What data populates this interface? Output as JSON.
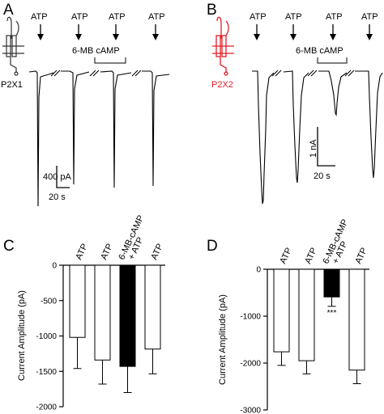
{
  "panels": {
    "A": {
      "letter": "A",
      "receptor": "P2X1",
      "receptor_color": "#333333",
      "agonist": "ATP",
      "modulator": "6-MB cAMP",
      "scale_current": "400 pA",
      "scale_time": "20 s",
      "trace_color": "#000000"
    },
    "B": {
      "letter": "B",
      "receptor": "P2X2",
      "receptor_color": "#e41e26",
      "agonist": "ATP",
      "modulator": "6-MB cAMP",
      "scale_current": "1 nA",
      "scale_time": "20 s",
      "trace_color": "#000000"
    },
    "C": {
      "letter": "C"
    },
    "D": {
      "letter": "D"
    }
  },
  "chart_data": [
    {
      "type": "bar",
      "panel": "C",
      "categories": [
        "ATP",
        "ATP",
        "6-MB-cAMP + ATP",
        "ATP"
      ],
      "values": [
        -1020,
        -1340,
        -1430,
        -1185
      ],
      "errors": [
        440,
        340,
        370,
        350
      ],
      "bar_colors": [
        "#ffffff",
        "#ffffff",
        "#000000",
        "#ffffff"
      ],
      "ylabel": "Current Amplitude (pA)",
      "ylim": [
        -2000,
        0
      ],
      "yticks": [
        0,
        -500,
        -1000,
        -1500,
        -2000
      ],
      "ytick_labels": [
        "0",
        "-500",
        "-1000",
        "-1500",
        "-2000"
      ],
      "annotations": []
    },
    {
      "type": "bar",
      "panel": "D",
      "categories": [
        "ATP",
        "ATP",
        "6-MB-cAMP + ATP",
        "ATP"
      ],
      "values": [
        -1760,
        -1950,
        -590,
        -2150
      ],
      "errors": [
        290,
        280,
        200,
        290
      ],
      "bar_colors": [
        "#ffffff",
        "#ffffff",
        "#000000",
        "#ffffff"
      ],
      "ylabel": "Current Amplitude (pA)",
      "ylim": [
        -3000,
        0
      ],
      "yticks": [
        0,
        -1000,
        -2000,
        -3000
      ],
      "ytick_labels": [
        "0",
        "-1000",
        "-2000",
        "-3000"
      ],
      "annotations": [
        {
          "bar": 2,
          "text": "***"
        }
      ]
    }
  ]
}
